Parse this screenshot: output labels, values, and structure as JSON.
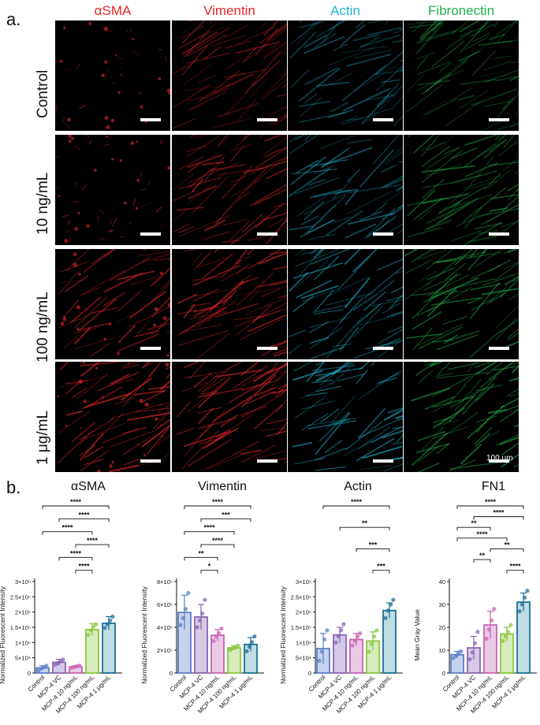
{
  "panel_a": {
    "letter": "a.",
    "columns": [
      {
        "label": "αSMA",
        "color": "#e8262b"
      },
      {
        "label": "Vimentin",
        "color": "#e8262b"
      },
      {
        "label": "Actin",
        "color": "#20b4d0"
      },
      {
        "label": "Fibronectin",
        "color": "#22b14c"
      }
    ],
    "rows": [
      "Control",
      "10 ng/mL",
      "100 ng/mL",
      "1 μg/mL"
    ],
    "scale_label": "100 μm"
  },
  "panel_b": {
    "letter": "b.",
    "categories": [
      "Control",
      "MCP-4 VC",
      "MCP-4 10 ng/mL",
      "MCP-4 100 ng/mL",
      "MCP-4 1 μg/mL"
    ],
    "bar_colors": [
      "#5b7fc4",
      "#8a64b5",
      "#c564b5",
      "#8cc63f",
      "#1d6f96"
    ],
    "fill_colors": [
      "#c6d3ee",
      "#d6c9e6",
      "#eac9e5",
      "#d6ebbb",
      "#bfdde5"
    ]
  },
  "chart_data": [
    {
      "type": "bar",
      "title": "αSMA",
      "ylabel": "Normalized Fluorescent Intensity",
      "ylim": [
        0,
        300000
      ],
      "ytick_labels": [
        "0",
        "5×10⁴",
        "1×10⁵",
        "1.5×10⁵",
        "2×10⁵",
        "2.5×10⁵",
        "3×10⁵"
      ],
      "ytick_values": [
        0,
        50000,
        100000,
        150000,
        200000,
        250000,
        300000
      ],
      "values": [
        17000,
        35000,
        20000,
        142000,
        163000
      ],
      "errors": [
        7000,
        10000,
        4000,
        20000,
        22000
      ],
      "points": [
        [
          8000,
          14000,
          19000,
          24000
        ],
        [
          27000,
          32000,
          38000,
          44000
        ],
        [
          17000,
          20000,
          22000,
          24000
        ],
        [
          125000,
          140000,
          152000,
          160000
        ],
        [
          148000,
          160000,
          172000,
          185000
        ]
      ],
      "significance": [
        {
          "from": 0,
          "to": 4,
          "label": "****"
        },
        {
          "from": 1,
          "to": 4,
          "label": "****"
        },
        {
          "from": 0,
          "to": 3,
          "label": "****"
        },
        {
          "from": 2,
          "to": 4,
          "label": "****"
        },
        {
          "from": 1,
          "to": 3,
          "label": "****"
        },
        {
          "from": 2,
          "to": 3,
          "label": "****"
        }
      ]
    },
    {
      "type": "bar",
      "title": "Vimentin",
      "ylabel": "Normalized Fluorescent Intensity",
      "ylim": [
        0,
        800000
      ],
      "ytick_labels": [
        "0",
        "2×10⁵",
        "4×10⁵",
        "6×10⁵",
        "8×10⁵"
      ],
      "ytick_values": [
        0,
        200000,
        400000,
        600000,
        800000
      ],
      "values": [
        530000,
        490000,
        330000,
        220000,
        250000
      ],
      "errors": [
        150000,
        110000,
        50000,
        20000,
        60000
      ],
      "points": [
        [
          420000,
          480000,
          560000,
          700000
        ],
        [
          400000,
          460000,
          520000,
          640000
        ],
        [
          280000,
          320000,
          350000,
          390000
        ],
        [
          200000,
          215000,
          225000,
          240000
        ],
        [
          190000,
          230000,
          270000,
          320000
        ]
      ],
      "significance": [
        {
          "from": 0,
          "to": 4,
          "label": "****"
        },
        {
          "from": 1,
          "to": 4,
          "label": "***"
        },
        {
          "from": 0,
          "to": 3,
          "label": "****"
        },
        {
          "from": 1,
          "to": 3,
          "label": "****"
        },
        {
          "from": 0,
          "to": 2,
          "label": "**"
        },
        {
          "from": 1,
          "to": 2,
          "label": "*"
        }
      ]
    },
    {
      "type": "bar",
      "title": "Actin",
      "ylabel": "Normalized Fluorescent Intensity",
      "ylim": [
        0,
        300000
      ],
      "ytick_labels": [
        "0",
        "5×10⁴",
        "1×10⁵",
        "1.5×10⁵",
        "2×10⁵",
        "2.5×10⁵",
        "3×10⁵"
      ],
      "ytick_values": [
        0,
        50000,
        100000,
        150000,
        200000,
        250000,
        300000
      ],
      "values": [
        80000,
        125000,
        110000,
        105000,
        205000
      ],
      "errors": [
        50000,
        25000,
        20000,
        30000,
        25000
      ],
      "points": [
        [
          40000,
          70000,
          110000,
          140000
        ],
        [
          100000,
          120000,
          140000,
          160000
        ],
        [
          90000,
          105000,
          120000,
          130000
        ],
        [
          70000,
          95000,
          120000,
          140000
        ],
        [
          180000,
          205000,
          225000,
          240000
        ]
      ],
      "significance": [
        {
          "from": 0,
          "to": 4,
          "label": "****"
        },
        {
          "from": 1,
          "to": 4,
          "label": "**"
        },
        {
          "from": 2,
          "to": 4,
          "label": "***"
        },
        {
          "from": 3,
          "to": 4,
          "label": "***"
        }
      ]
    },
    {
      "type": "bar",
      "title": "FN1",
      "ylabel": "Mean Gray Value",
      "ylim": [
        0,
        40
      ],
      "ytick_labels": [
        "0",
        "10",
        "20",
        "30",
        "40"
      ],
      "ytick_values": [
        0,
        10,
        20,
        30,
        40
      ],
      "values": [
        8,
        11,
        21,
        17,
        31
      ],
      "errors": [
        1.5,
        5,
        6,
        3,
        4
      ],
      "points": [
        [
          6.5,
          7.5,
          8.5,
          9.5
        ],
        [
          6,
          9,
          13,
          18
        ],
        [
          15,
          19,
          23,
          28
        ],
        [
          14,
          16,
          18,
          21
        ],
        [
          27,
          30,
          33,
          36
        ]
      ],
      "significance": [
        {
          "from": 0,
          "to": 4,
          "label": "****"
        },
        {
          "from": 1,
          "to": 4,
          "label": "****"
        },
        {
          "from": 0,
          "to": 2,
          "label": "**"
        },
        {
          "from": 0,
          "to": 3,
          "label": "****"
        },
        {
          "from": 2,
          "to": 4,
          "label": "**"
        },
        {
          "from": 1,
          "to": 2,
          "label": "**"
        },
        {
          "from": 3,
          "to": 4,
          "label": "****"
        }
      ]
    }
  ]
}
